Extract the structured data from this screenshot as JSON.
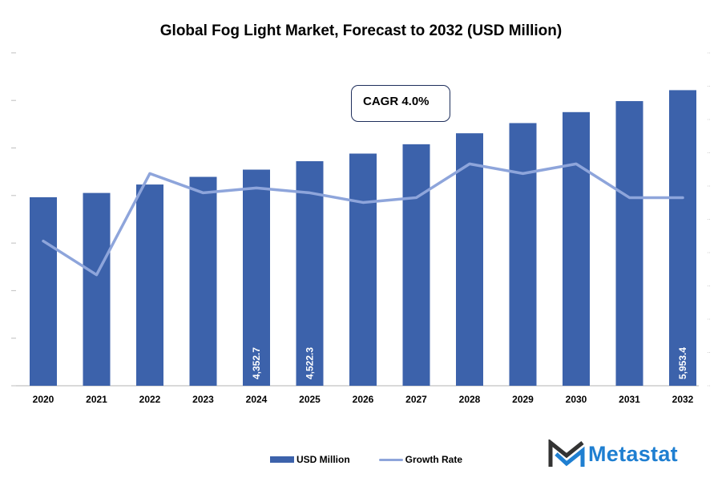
{
  "chart_data": {
    "type": "bar+line",
    "title": "Global Fog Light Market, Forecast to 2032 (USD Million)",
    "categories": [
      "2020",
      "2021",
      "2022",
      "2023",
      "2024",
      "2025",
      "2026",
      "2027",
      "2028",
      "2029",
      "2030",
      "2031",
      "2032"
    ],
    "series": [
      {
        "name": "USD Million",
        "type": "bar",
        "color": "#3c62ab",
        "values": [
          3797,
          3883,
          4053,
          4207,
          4352.7,
          4522.3,
          4676,
          4864,
          5085,
          5290,
          5511,
          5733,
          5953.4
        ],
        "data_labels": {
          "4": "4,352.7",
          "5": "4,522.3",
          "12": "5,953.4"
        }
      },
      {
        "name": "Growth Rate",
        "type": "line",
        "color": "#8ea5db",
        "axis": "secondary",
        "values_percent_estimated": [
          3.0,
          2.3,
          4.4,
          4.0,
          4.1,
          4.0,
          3.8,
          3.9,
          4.6,
          4.4,
          4.6,
          3.9,
          3.9
        ]
      }
    ],
    "xlabel": "",
    "ylabel": "",
    "ylim": [
      0,
      6800
    ],
    "y2lim": [
      0,
      7
    ],
    "y_tick_labels_visible": false,
    "grid": false,
    "legend": "bottom",
    "annotation": "CAGR 4.0%"
  },
  "legend": {
    "bar_label": "USD Million",
    "line_label": "Growth Rate"
  },
  "annotation": {
    "cagr": "CAGR 4.0%"
  },
  "brand": {
    "name": "Metastat",
    "color": "#1f7fd1"
  }
}
